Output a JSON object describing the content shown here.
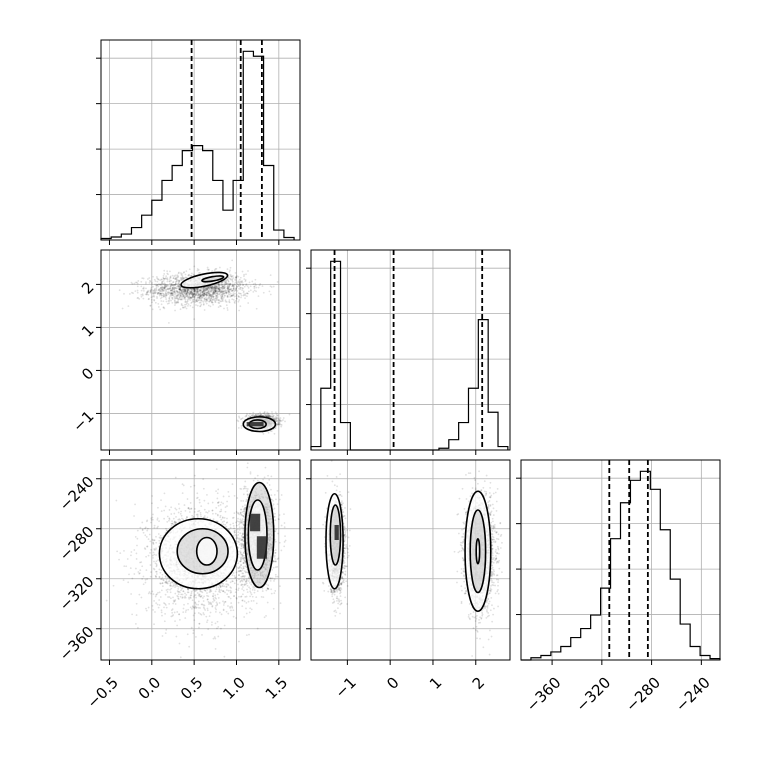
{
  "chart_data": {
    "type": "corner",
    "params": [
      {
        "ticks": [
          -0.5,
          0.0,
          0.5,
          1.0,
          1.5
        ],
        "tick_labels": [
          "−0.5",
          "0.0",
          "0.5",
          "1.0",
          "1.5"
        ],
        "range": [
          -0.6,
          1.75
        ]
      },
      {
        "ticks": [
          -1,
          0,
          1,
          2
        ],
        "tick_labels": [
          "−1",
          "0",
          "1",
          "2"
        ],
        "range": [
          -1.85,
          2.8
        ]
      },
      {
        "ticks": [
          -360,
          -320,
          -280,
          -240
        ],
        "tick_labels": [
          "−360",
          "−320",
          "−280",
          "−240"
        ],
        "range": [
          -385,
          -225
        ]
      }
    ],
    "grid": true,
    "histograms": [
      {
        "param": 0,
        "bin_edges": [
          -0.6,
          -0.48,
          -0.36,
          -0.24,
          -0.12,
          0.0,
          0.12,
          0.24,
          0.36,
          0.48,
          0.6,
          0.72,
          0.84,
          0.96,
          1.08,
          1.2,
          1.32,
          1.44,
          1.56,
          1.68
        ],
        "counts": [
          0.3,
          0.6,
          1.2,
          2.5,
          5,
          8,
          12,
          15,
          18,
          19,
          18,
          12,
          6,
          12,
          38,
          37,
          15,
          2,
          0.5
        ],
        "quantiles": [
          0.47,
          1.05,
          1.3
        ]
      },
      {
        "param": 1,
        "bin_edges": [
          -1.85,
          -1.62,
          -1.39,
          -1.16,
          -0.93,
          -0.7,
          -0.47,
          -0.24,
          -0.01,
          0.22,
          0.45,
          0.68,
          0.91,
          1.14,
          1.37,
          1.6,
          1.83,
          2.06,
          2.29,
          2.52,
          2.75
        ],
        "counts": [
          1,
          18,
          55,
          8,
          0,
          0,
          0,
          0,
          0,
          0,
          0,
          0,
          0,
          0.5,
          3,
          8,
          18,
          38,
          11,
          1
        ],
        "quantiles": [
          -1.3,
          0.08,
          2.15
        ]
      },
      {
        "param": 2,
        "bin_edges": [
          -385,
          -377,
          -369,
          -361,
          -353,
          -345,
          -337,
          -329,
          -321,
          -313,
          -305,
          -297,
          -289,
          -281,
          -273,
          -265,
          -257,
          -249,
          -241,
          -233,
          -225
        ],
        "counts": [
          0,
          0.5,
          1,
          1.8,
          3,
          5,
          7,
          10,
          16,
          27,
          35,
          40,
          42,
          38,
          29,
          18,
          8,
          3,
          1,
          0.3
        ],
        "quantiles": [
          -314,
          -298,
          -283
        ]
      }
    ],
    "scatter_panels": [
      {
        "x_param": 0,
        "y_param": 1,
        "clusters": [
          {
            "center": [
              0.55,
              1.9
            ],
            "spread": [
              0.3,
              0.18
            ],
            "rotation_deg": 10,
            "n": 1800
          },
          {
            "center": [
              1.3,
              -1.2
            ],
            "spread": [
              0.09,
              0.08
            ],
            "rotation_deg": 0,
            "n": 1400
          }
        ],
        "contours": [
          {
            "center": [
              0.62,
              2.1
            ],
            "radii": [
              0.28,
              0.14
            ],
            "rotation_deg": 12
          },
          {
            "center": [
              0.72,
              2.13
            ],
            "radii": [
              0.13,
              0.05
            ],
            "rotation_deg": 10
          },
          {
            "center": [
              1.27,
              -1.25
            ],
            "radii": [
              0.19,
              0.17
            ],
            "rotation_deg": 0
          },
          {
            "center": [
              1.25,
              -1.25
            ],
            "radii": [
              0.1,
              0.1
            ],
            "rotation_deg": 0
          }
        ],
        "peaks": [
          {
            "center": [
              1.22,
              -1.25
            ],
            "size": [
              0.2,
              0.1
            ]
          }
        ]
      },
      {
        "x_param": 0,
        "y_param": 2,
        "clusters": [
          {
            "center": [
              0.55,
              -305
            ],
            "spread": [
              0.3,
              22
            ],
            "rotation_deg": 0,
            "n": 2200
          },
          {
            "center": [
              1.25,
              -288
            ],
            "spread": [
              0.1,
              18
            ],
            "rotation_deg": 0,
            "n": 2000
          }
        ],
        "contours": [
          {
            "center": [
              0.55,
              -300
            ],
            "radii": [
              0.46,
              28
            ],
            "rotation_deg": 0
          },
          {
            "center": [
              0.6,
              -298
            ],
            "radii": [
              0.3,
              18
            ],
            "rotation_deg": 0
          },
          {
            "center": [
              0.65,
              -298
            ],
            "radii": [
              0.12,
              11
            ],
            "rotation_deg": 0
          },
          {
            "center": [
              1.27,
              -285
            ],
            "radii": [
              0.17,
              42
            ],
            "rotation_deg": 0
          },
          {
            "center": [
              1.25,
              -285
            ],
            "radii": [
              0.11,
              28
            ],
            "rotation_deg": 0
          }
        ],
        "peaks": [
          {
            "center": [
              1.22,
              -275
            ],
            "size": [
              0.12,
              14
            ]
          },
          {
            "center": [
              1.3,
              -295
            ],
            "size": [
              0.12,
              18
            ]
          }
        ]
      },
      {
        "x_param": 1,
        "y_param": 2,
        "clusters": [
          {
            "center": [
              -1.25,
              -295
            ],
            "spread": [
              0.1,
              18
            ],
            "rotation_deg": 0,
            "n": 1600
          },
          {
            "center": [
              2.1,
              -300
            ],
            "spread": [
              0.17,
              22
            ],
            "rotation_deg": 0,
            "n": 2000
          }
        ],
        "contours": [
          {
            "center": [
              -1.3,
              -290
            ],
            "radii": [
              0.2,
              38
            ],
            "rotation_deg": 0
          },
          {
            "center": [
              -1.28,
              -285
            ],
            "radii": [
              0.12,
              24
            ],
            "rotation_deg": 0
          },
          {
            "center": [
              2.05,
              -298
            ],
            "radii": [
              0.3,
              48
            ],
            "rotation_deg": 0
          },
          {
            "center": [
              2.05,
              -298
            ],
            "radii": [
              0.18,
              33
            ],
            "rotation_deg": 0
          },
          {
            "center": [
              2.05,
              -298
            ],
            "radii": [
              0.04,
              10
            ],
            "rotation_deg": 0
          }
        ],
        "peaks": [
          {
            "center": [
              -1.25,
              -283
            ],
            "size": [
              0.1,
              12
            ]
          }
        ]
      }
    ]
  },
  "colors": {
    "line": "#000000",
    "grid": "#b0b0b0",
    "points": "#000000",
    "axes": "#000000",
    "background": "#ffffff"
  }
}
